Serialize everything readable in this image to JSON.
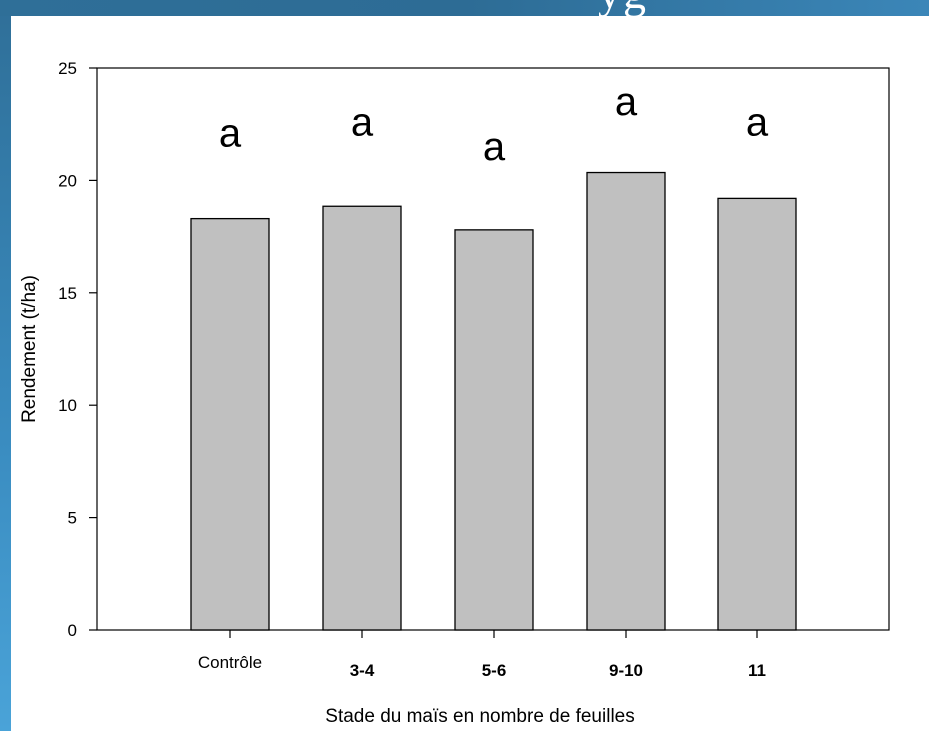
{
  "frame": {
    "top_glyph": "yg",
    "colors": {
      "frame_blue": "#2f6f98",
      "frame_light": "#4aa3d8"
    }
  },
  "chart_data": {
    "type": "bar",
    "title": "",
    "xlabel": "Stade du maïs en nombre de feuilles",
    "ylabel": "Rendement (t/ha)",
    "categories": [
      "Contrôle",
      "3-4",
      "5-6",
      "9-10",
      "11"
    ],
    "bold_categories": [
      "3-4",
      "5-6",
      "9-10",
      "11"
    ],
    "values": [
      18.3,
      18.85,
      17.8,
      20.35,
      19.2
    ],
    "annotations": [
      "a",
      "a",
      "a",
      "a",
      "a"
    ],
    "annotation_levels": [
      21.5,
      22.0,
      20.9,
      22.9,
      22.0
    ],
    "ylim": [
      0,
      25
    ],
    "yticks": [
      0,
      5,
      10,
      15,
      20,
      25
    ],
    "bar_color": "#c0c0c0",
    "grid": false,
    "legend": "none"
  }
}
